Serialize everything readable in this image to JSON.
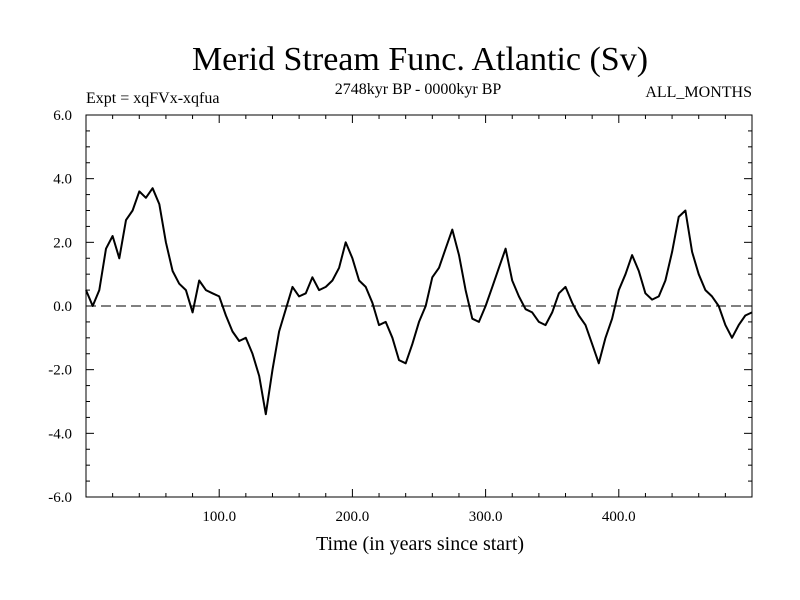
{
  "chart_data": {
    "type": "line",
    "title": "Merid Stream Func. Atlantic (Sv)",
    "subtitle_left": "Expt = xqFVx-xqfua",
    "subtitle_center": "2748kyr BP - 0000kyr BP",
    "subtitle_right": "ALL_MONTHS",
    "xlabel": "Time (in years since start)",
    "ylabel": "",
    "xlim": [
      0,
      500
    ],
    "ylim": [
      -6,
      6
    ],
    "x_ticks": [
      100,
      200,
      300,
      400
    ],
    "x_tick_labels": [
      "100.0",
      "200.0",
      "300.0",
      "400.0"
    ],
    "y_ticks": [
      6,
      4,
      2,
      0,
      -2,
      -4,
      -6
    ],
    "y_tick_labels": [
      "6.0",
      "4.0",
      "2.0",
      "0.0",
      "-2.0",
      "-4.0",
      "-6.0"
    ],
    "reference_line": 0,
    "series": [
      {
        "name": "Merid Stream Func. Atlantic",
        "x": [
          0,
          5,
          10,
          15,
          20,
          25,
          30,
          35,
          40,
          45,
          50,
          55,
          60,
          65,
          70,
          75,
          80,
          85,
          90,
          95,
          100,
          105,
          110,
          115,
          120,
          125,
          130,
          135,
          140,
          145,
          150,
          155,
          160,
          165,
          170,
          175,
          180,
          185,
          190,
          195,
          200,
          205,
          210,
          215,
          220,
          225,
          230,
          235,
          240,
          245,
          250,
          255,
          260,
          265,
          270,
          275,
          280,
          285,
          290,
          295,
          300,
          305,
          310,
          315,
          320,
          325,
          330,
          335,
          340,
          345,
          350,
          355,
          360,
          365,
          370,
          375,
          380,
          385,
          390,
          395,
          400,
          405,
          410,
          415,
          420,
          425,
          430,
          435,
          440,
          445,
          450,
          455,
          460,
          465,
          470,
          475,
          480,
          485,
          490,
          495,
          500
        ],
        "values": [
          0.5,
          0.0,
          0.5,
          1.8,
          2.2,
          1.5,
          2.7,
          3.0,
          3.6,
          3.4,
          3.7,
          3.2,
          2.0,
          1.1,
          0.7,
          0.5,
          -0.2,
          0.8,
          0.5,
          0.4,
          0.3,
          -0.3,
          -0.8,
          -1.1,
          -1.0,
          -1.5,
          -2.2,
          -3.4,
          -2.0,
          -0.8,
          -0.1,
          0.6,
          0.3,
          0.4,
          0.9,
          0.5,
          0.6,
          0.8,
          1.2,
          2.0,
          1.5,
          0.8,
          0.6,
          0.1,
          -0.6,
          -0.5,
          -1.0,
          -1.7,
          -1.8,
          -1.2,
          -0.5,
          0.0,
          0.9,
          1.2,
          1.8,
          2.4,
          1.6,
          0.5,
          -0.4,
          -0.5,
          0.0,
          0.6,
          1.2,
          1.8,
          0.8,
          0.3,
          -0.1,
          -0.2,
          -0.5,
          -0.6,
          -0.2,
          0.4,
          0.6,
          0.1,
          -0.3,
          -0.6,
          -1.2,
          -1.8,
          -1.0,
          -0.4,
          0.5,
          1.0,
          1.6,
          1.1,
          0.4,
          0.2,
          0.3,
          0.8,
          1.7,
          2.8,
          3.0,
          1.7,
          1.0,
          0.5,
          0.3,
          0.0,
          -0.6,
          -1.0,
          -0.6,
          -0.3,
          -0.2
        ]
      }
    ]
  }
}
